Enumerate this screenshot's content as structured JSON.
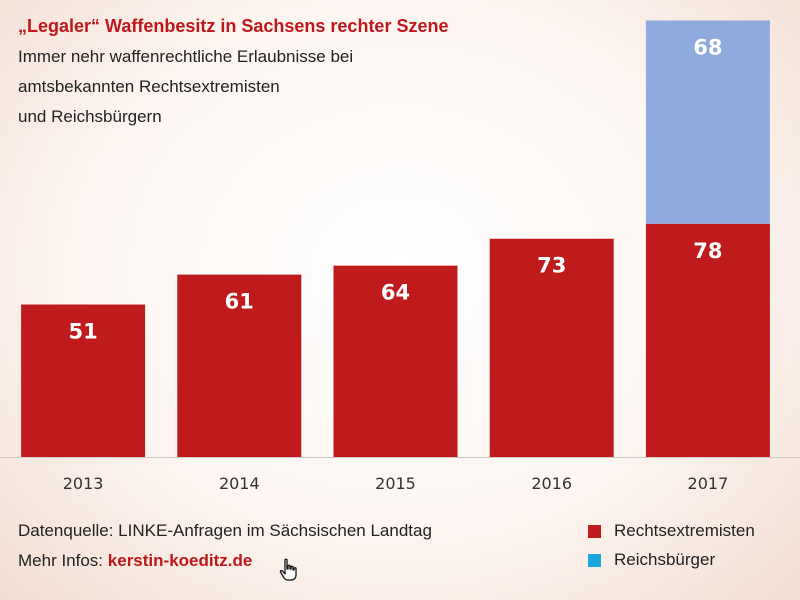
{
  "header": {
    "title": "„Legaler“ Waffenbesitz in Sachsens rechter Szene",
    "subtitle_lines": [
      "Immer nehr waffenrechtliche Erlaubnisse bei",
      "amtsbekannten Rechtsextremisten",
      "und Reichsbürgern"
    ]
  },
  "footer": {
    "source": "Datenquelle: LINKE-Anfragen im Sächsischen Landtag",
    "more_info_prefix": "Mehr Infos:",
    "more_info_link": "kerstin-koeditz.de"
  },
  "colors": {
    "rechtsextremisten": "#bf1a1c",
    "reichsbuerger_bar": "#8faadc",
    "reichsbuerger_legend": "#1aa7e0",
    "title": "#c0171d"
  },
  "icons": {
    "cursor": "hand-pointer-icon"
  },
  "chart_data": {
    "type": "bar",
    "stacked": true,
    "categories": [
      "2013",
      "2014",
      "2015",
      "2016",
      "2017"
    ],
    "series": [
      {
        "name": "Rechtsextremisten",
        "values": [
          51,
          61,
          64,
          73,
          78
        ],
        "color": "#bf1a1c"
      },
      {
        "name": "Reichsbürger",
        "values": [
          0,
          0,
          0,
          0,
          68
        ],
        "color": "#8faadc",
        "legend_color": "#1aa7e0"
      }
    ],
    "data_labels": true,
    "grid": false,
    "legend_position": "bottom-right",
    "ylim": [
      0,
      146
    ]
  }
}
